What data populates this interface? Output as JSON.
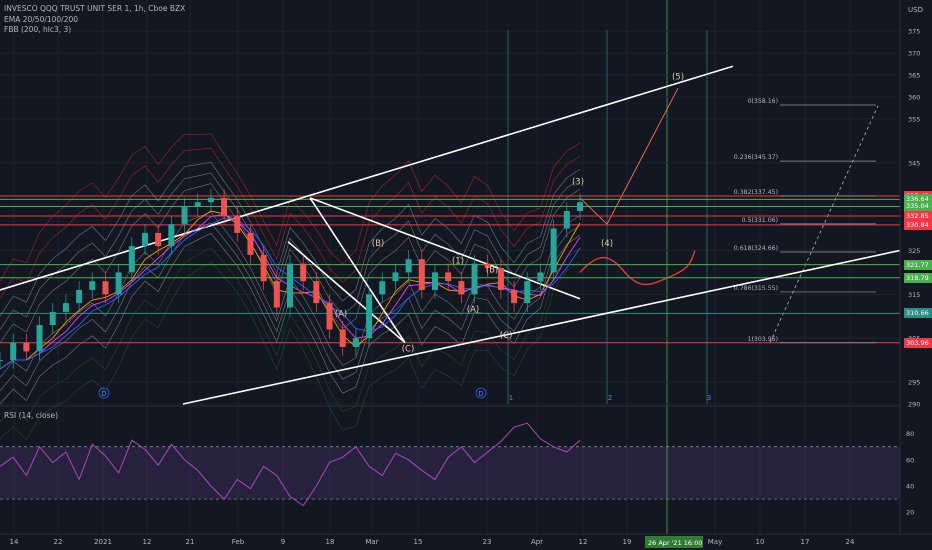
{
  "legend": {
    "symbol": "INVESCO QQQ TRUST UNIT SER 1, 1h, Cboe BZX",
    "ema": "EMA 20/50/100/200",
    "fbb": "FBB (200, hlc3, 3)",
    "rsi": "RSI (14, close)"
  },
  "currency": "USD",
  "price_axis": {
    "range": [
      290,
      378
    ],
    "ticks": [
      290,
      295,
      305,
      315,
      325,
      335,
      345,
      355,
      360,
      365,
      370,
      375
    ]
  },
  "rsi_axis": {
    "range": [
      14,
      92
    ],
    "ticks": [
      20,
      40,
      60,
      80
    ],
    "bands": [
      30,
      70
    ]
  },
  "time_axis": {
    "ticks": [
      "14",
      "22",
      "2021",
      "12",
      "21",
      "Feb",
      "9",
      "18",
      "Mar",
      "15",
      "23",
      "Apr",
      "12",
      "19",
      "May",
      "10",
      "17",
      "24"
    ],
    "highlight": "26 Apr '21",
    "highlight_time": "16:00"
  },
  "price_levels": [
    {
      "label": "337.43",
      "value": 337.43,
      "color": "#f23645"
    },
    {
      "label": "336.64",
      "value": 336.64,
      "color": "#4caf50"
    },
    {
      "label": "335.04",
      "value": 335.04,
      "color": "#4caf50"
    },
    {
      "label": "332.85",
      "value": 332.85,
      "color": "#f23645"
    },
    {
      "label": "330.84",
      "value": 330.84,
      "color": "#f23645"
    },
    {
      "label": "321.77",
      "value": 321.77,
      "color": "#4caf50"
    },
    {
      "label": "318.79",
      "value": 318.79,
      "color": "#4caf50"
    },
    {
      "label": "310.66",
      "value": 310.66,
      "color": "#2a8c82"
    },
    {
      "label": "303.96",
      "value": 303.96,
      "color": "#f23645"
    }
  ],
  "fib_levels": [
    {
      "label": "0(358.16)",
      "value": 358.16
    },
    {
      "label": "0.236(345.37)",
      "value": 345.37
    },
    {
      "label": "0.382(337.45)",
      "value": 337.45
    },
    {
      "label": "0.5(331.06)",
      "value": 331.06
    },
    {
      "label": "0.618(324.66)",
      "value": 324.66
    },
    {
      "label": "0.786(315.55)",
      "value": 315.55
    },
    {
      "label": "1(303.96)",
      "value": 303.96
    }
  ],
  "wave_labels": [
    "(5)",
    "(3)",
    "(4)",
    "(B)",
    "(1)",
    "(B)",
    "(A)",
    "(A)",
    "(C)",
    "(C)"
  ],
  "cycle_labels": [
    "D",
    "D",
    "1",
    "2",
    "3"
  ],
  "chart_data": {
    "type": "line",
    "series": [
      {
        "values": [
          300,
          304,
          302,
          308,
          311,
          313,
          316,
          318,
          315,
          320,
          326,
          329,
          326,
          331,
          335,
          336,
          337,
          333,
          329,
          324,
          318,
          312,
          322,
          318,
          313,
          307,
          303,
          305,
          315,
          318,
          320,
          323,
          316,
          320,
          318,
          315,
          322,
          321,
          316,
          313,
          318,
          320,
          330,
          334,
          336
        ]
      }
    ],
    "rsi": {
      "values": [
        55,
        62,
        48,
        70,
        58,
        66,
        45,
        72,
        63,
        50,
        75,
        68,
        56,
        72,
        60,
        52,
        40,
        30,
        45,
        38,
        55,
        48,
        32,
        25,
        40,
        58,
        62,
        70,
        55,
        48,
        65,
        60,
        52,
        45,
        62,
        70,
        58,
        66,
        74,
        85,
        88,
        76,
        70,
        66,
        75
      ]
    }
  }
}
